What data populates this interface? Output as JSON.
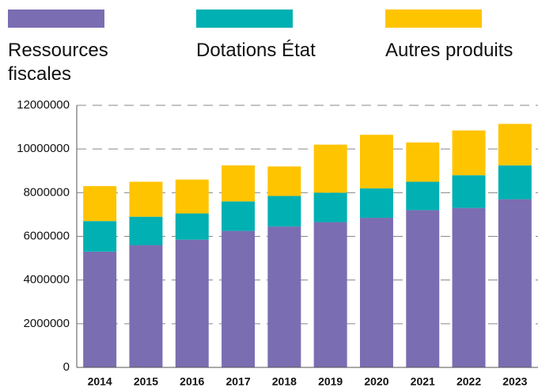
{
  "chart_data": {
    "type": "stacked_bar",
    "categories": [
      "2014",
      "2015",
      "2016",
      "2017",
      "2018",
      "2019",
      "2020",
      "2021",
      "2022",
      "2023"
    ],
    "series": [
      {
        "name": "Ressources fiscales",
        "color": "#7b6db1",
        "values": [
          5300000,
          5600000,
          5850000,
          6250000,
          6450000,
          6650000,
          6850000,
          7200000,
          7300000,
          7700000
        ]
      },
      {
        "name": "Dotations État",
        "color": "#00b0b2",
        "values": [
          1400000,
          1300000,
          1200000,
          1350000,
          1400000,
          1350000,
          1350000,
          1300000,
          1500000,
          1550000
        ]
      },
      {
        "name": "Autres produits",
        "color": "#ffc400",
        "values": [
          1600000,
          1600000,
          1550000,
          1650000,
          1350000,
          2200000,
          2450000,
          1800000,
          2050000,
          1900000
        ]
      }
    ],
    "ylim": [
      0,
      12000000
    ],
    "yticks": [
      0,
      2000000,
      4000000,
      6000000,
      8000000,
      10000000,
      12000000
    ],
    "grid": true
  }
}
